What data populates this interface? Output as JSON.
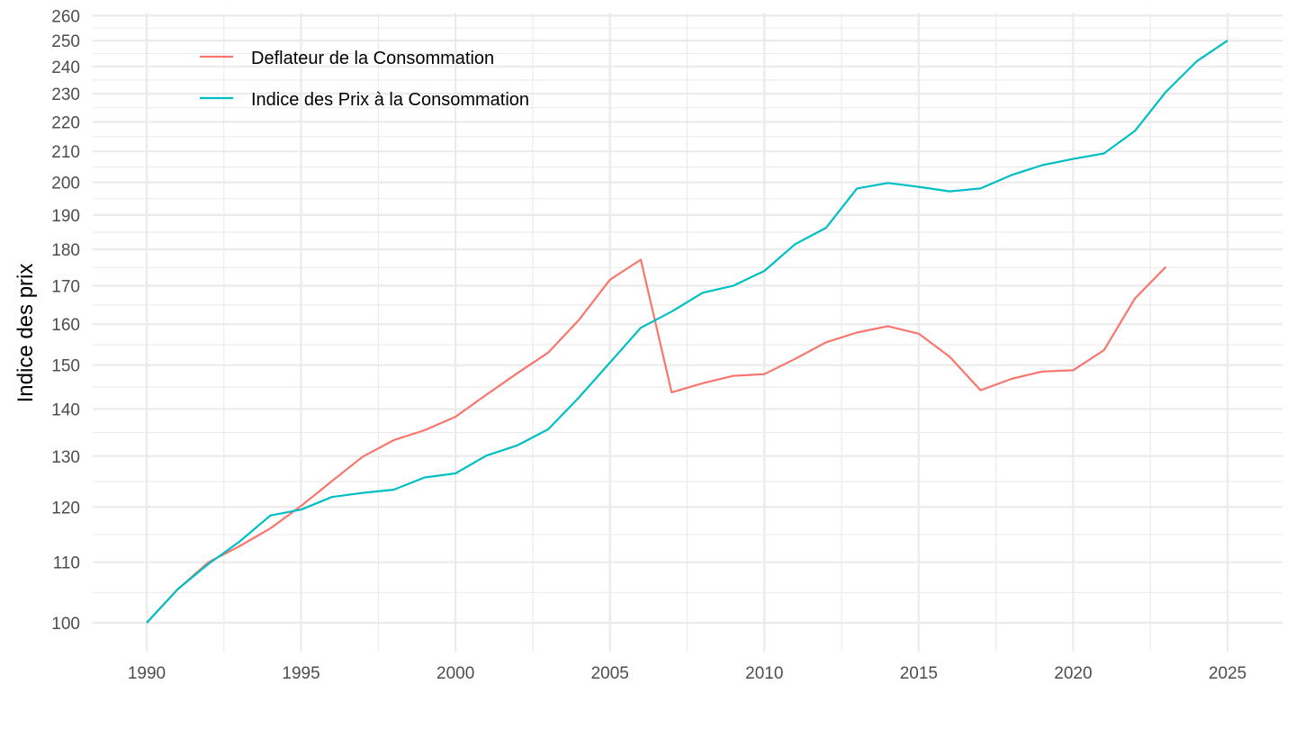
{
  "chart_data": {
    "type": "line",
    "title": "",
    "xlabel": "",
    "ylabel": "Indice des prix",
    "y_scale": "log",
    "xlim": [
      1988.25,
      2026.75
    ],
    "ylim": [
      96,
      262
    ],
    "grid": true,
    "legend_position": "top-left",
    "x_ticks": [
      1990,
      1995,
      2000,
      2005,
      2010,
      2015,
      2020,
      2025
    ],
    "x_tick_labels": [
      "1990",
      "1995",
      "2000",
      "2005",
      "2010",
      "2015",
      "2020",
      "2025"
    ],
    "y_ticks": [
      100,
      110,
      120,
      130,
      140,
      150,
      160,
      170,
      180,
      190,
      200,
      210,
      220,
      230,
      240,
      250,
      260
    ],
    "y_tick_labels": [
      "100",
      "110",
      "120",
      "130",
      "140",
      "150",
      "160",
      "170",
      "180",
      "190",
      "200",
      "210",
      "220",
      "230",
      "240",
      "250",
      "260"
    ],
    "series": [
      {
        "name": "Deflateur de la Consommation",
        "color": "#F8766D",
        "x": [
          1990,
          1991,
          1992,
          1993,
          1994,
          1995,
          1996,
          1997,
          1998,
          1999,
          2000,
          2001,
          2002,
          2003,
          2004,
          2005,
          2006,
          2007,
          2008,
          2009,
          2010,
          2011,
          2012,
          2013,
          2014,
          2015,
          2016,
          2017,
          2018,
          2019,
          2020,
          2021,
          2022,
          2023
        ],
        "values": [
          100,
          105.4,
          110.0,
          112.8,
          116.0,
          120.2,
          125.0,
          129.9,
          133.3,
          135.4,
          138.3,
          143.2,
          148.1,
          153.0,
          161.1,
          171.6,
          177.1,
          143.7,
          145.8,
          147.5,
          147.9,
          151.5,
          155.5,
          157.9,
          159.5,
          157.6,
          152.0,
          144.2,
          146.8,
          148.5,
          148.8,
          153.6,
          166.6,
          175.1
        ]
      },
      {
        "name": "Indice des Prix à la Consommation",
        "color": "#00BFC4",
        "x": [
          1990,
          1991,
          1992,
          1993,
          1994,
          1995,
          1996,
          1997,
          1998,
          1999,
          2000,
          2001,
          2002,
          2003,
          2004,
          2005,
          2006,
          2007,
          2008,
          2009,
          2010,
          2011,
          2012,
          2013,
          2014,
          2015,
          2016,
          2017,
          2018,
          2019,
          2020,
          2021,
          2022,
          2023,
          2024,
          2025
        ],
        "values": [
          100,
          105.4,
          109.7,
          113.6,
          118.4,
          119.5,
          121.9,
          122.7,
          123.3,
          125.7,
          126.5,
          130.1,
          132.2,
          135.6,
          142.6,
          150.6,
          159.1,
          163.2,
          168.1,
          170.0,
          174.0,
          181.5,
          186.2,
          198.1,
          199.8,
          198.6,
          197.2,
          198.1,
          202.3,
          205.5,
          207.5,
          209.3,
          216.9,
          230.6,
          242.0,
          250.0
        ]
      }
    ]
  }
}
